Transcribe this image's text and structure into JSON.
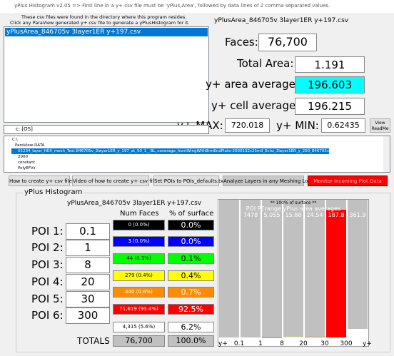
{
  "window_title": "yPlus Histogram v2.05 => First line in a y+ csv file must be 'yPlus,Area', followed by data lines of 2 comma separated values.",
  "info": [
    "These csv files were found in the directory where this program resides.",
    "Click any ParaView generated y+ csv file to generate a yPlusHistogram for it."
  ],
  "files": [
    "yPlusArea_846705v 3layer1ER y+197.csv"
  ],
  "current_file": "yPlusArea_846705v 3layer1ER y+197.csv",
  "stats": {
    "faces_label": "Faces:",
    "faces": "76,700",
    "area_label": "Total Area:",
    "area": "1.191",
    "area_avg_label": "y+ area average:",
    "area_avg": "196.603",
    "cell_avg_label": "y+ cell average:",
    "cell_avg": "196.215",
    "max_label": "y+ MAX:",
    "max": "720.018",
    "min_label": "y+ MIN:",
    "min": "0.62435",
    "readme": "View ReadMe"
  },
  "drive": "c: [OS]",
  "tree": [
    "C:\\",
    "ParaView-DATA",
    "01234_layer_HEX_mesh_Test-846705v_3layer1ER_y_197_at_50_1__BL_coverage_frontWingWithBrmEndPlate-2000132c25mil_6chz_3layer1ER_y_250_846705v",
    "2000",
    "constant",
    "PolyEFVs"
  ],
  "buttons": [
    "How to create y+ csv file",
    "Video of how to create y+ csv file",
    "Set POIs to POIs_defaults.txt",
    "Analyze Layers in any Meshing Log",
    "Monitor Incoming Plot Data"
  ],
  "histogram": {
    "group_title": "yPlus Histogram",
    "file": "yPlusArea_846705v 3layer1ER y+197.csv",
    "count_header": "Num Faces",
    "percent_header": "% of surface",
    "poi_labels": [
      "POI 1:",
      "POI 2:",
      "POI 3:",
      "POI 4:",
      "POI 5:",
      "POI 6:"
    ],
    "poi_values": [
      "0.1",
      "1",
      "8",
      "20",
      "30",
      "300"
    ],
    "counts": [
      "0 (0.0%)",
      "3 (0.0%)",
      "44 (0.1%)",
      "279 (0.4%)",
      "440 (0.6%)",
      "71,619 (93.4%)",
      "4,315 (5.6%)"
    ],
    "percent": [
      0.0,
      0.0,
      0.1,
      0.4,
      0.7,
      92.5,
      6.2
    ],
    "percent_labels": [
      "0.0%",
      "0.0%",
      "0.1%",
      "0.4%",
      "0.7%",
      "92.5%",
      "6.2%"
    ],
    "colors": [
      "#000000",
      "#0000ff",
      "#00ff00",
      "#ffff00",
      "#ff8c00",
      "#ff0000",
      "#ffffff"
    ],
    "totals_label": "TOTALS",
    "total_count": "76,700",
    "total_percent": "100.0%",
    "chart": {
      "ylim": [
        0,
        100
      ],
      "header": "** 100% of surface **",
      "subheader": "POI PErange yPlus area averages",
      "averages": [
        "7478",
        "5.055",
        "15.88",
        "24.54",
        "187.8",
        "361.9"
      ],
      "edge_label_left": "y+",
      "edge_label_right": "y+"
    }
  }
}
